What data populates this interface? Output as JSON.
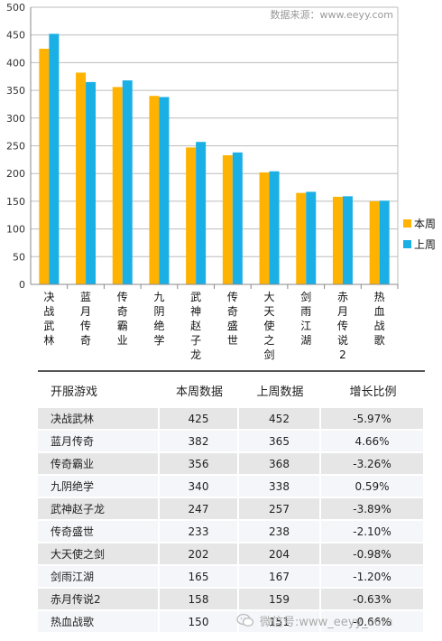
{
  "chart_data": {
    "type": "bar",
    "categories": [
      "决战武林",
      "蓝月传奇",
      "传奇霸业",
      "九阴绝学",
      "武神赵子龙",
      "传奇盛世",
      "大天使之剑",
      "剑雨江湖",
      "赤月传说2",
      "热血战歌"
    ],
    "series": [
      {
        "name": "本周",
        "values": [
          425,
          382,
          356,
          340,
          247,
          233,
          202,
          165,
          158,
          150
        ]
      },
      {
        "name": "上周",
        "values": [
          452,
          365,
          368,
          338,
          257,
          238,
          204,
          167,
          159,
          151
        ]
      }
    ],
    "ylim": [
      0,
      500
    ],
    "yticks": [
      0,
      50,
      100,
      150,
      200,
      250,
      300,
      350,
      400,
      450,
      500
    ],
    "grid": true,
    "legend": "right"
  },
  "source": "数据来源：www.eeyy.com",
  "colors": {
    "this_week": "#FFB300",
    "last_week": "#1AB0E6",
    "grid": "#bdbdbd",
    "axis": "#888888"
  },
  "table": {
    "headers": [
      "开服游戏",
      "本周数据",
      "上周数据",
      "增长比例"
    ],
    "rows": [
      [
        "决战武林",
        "425",
        "452",
        "-5.97%"
      ],
      [
        "蓝月传奇",
        "382",
        "365",
        "4.66%"
      ],
      [
        "传奇霸业",
        "356",
        "368",
        "-3.26%"
      ],
      [
        "九阴绝学",
        "340",
        "338",
        "0.59%"
      ],
      [
        "武神赵子龙",
        "247",
        "257",
        "-3.89%"
      ],
      [
        "传奇盛世",
        "233",
        "238",
        "-2.10%"
      ],
      [
        "大天使之剑",
        "202",
        "204",
        "-0.98%"
      ],
      [
        "剑雨江湖",
        "165",
        "167",
        "-1.20%"
      ],
      [
        "赤月传说2",
        "158",
        "159",
        "-0.63%"
      ],
      [
        "热血战歌",
        "150",
        "151",
        "-0.66%"
      ]
    ]
  },
  "watermark": {
    "text": "微信号:www_eeyy_com",
    "icon": "wechat-icon"
  }
}
